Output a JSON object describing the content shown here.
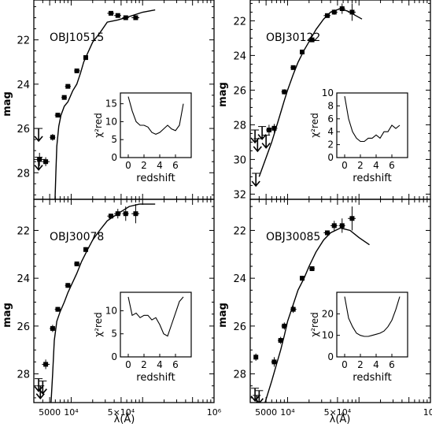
{
  "figure": {
    "xlabel": "λ(Å)",
    "ylabel": "mag",
    "xticklabels": [
      "5000",
      "10⁴",
      "5×10⁴",
      "10⁶"
    ],
    "inset": {
      "xlabel": "redshift",
      "ylabel": "χ²red"
    }
  },
  "chart_data": [
    {
      "type": "scatter",
      "panel": "top-left",
      "title": "OBJ10515",
      "xaxis": {
        "scale": "log",
        "label": "",
        "ticks": [
          5000,
          10000,
          50000,
          1000000
        ]
      },
      "yaxis": {
        "label": "mag",
        "inverted": true,
        "range": [
          29.2,
          20.2
        ],
        "ticks": [
          22,
          24,
          26,
          28
        ]
      },
      "photometry": [
        {
          "lambda": 3600,
          "mag": 27.4,
          "err": 0.3,
          "lambda_lo": 3000,
          "lambda_hi": 4300
        },
        {
          "lambda": 4400,
          "mag": 27.5,
          "err": 0.2,
          "lambda_lo": 3900,
          "lambda_hi": 5000
        },
        {
          "lambda": 5500,
          "mag": 26.4,
          "err": 0.15,
          "lambda_lo": 5000,
          "lambda_hi": 6000
        },
        {
          "lambda": 6500,
          "mag": 25.4,
          "err": 0.1,
          "lambda_lo": 5900,
          "lambda_hi": 7200
        },
        {
          "lambda": 8000,
          "mag": 24.6,
          "err": 0.1,
          "lambda_lo": 7300,
          "lambda_hi": 8700
        },
        {
          "lambda": 9000,
          "mag": 24.1,
          "err": 0.1,
          "lambda_lo": 8200,
          "lambda_hi": 9900
        },
        {
          "lambda": 12000,
          "mag": 23.4,
          "err": 0.1,
          "lambda_lo": 11000,
          "lambda_hi": 13300
        },
        {
          "lambda": 16000,
          "mag": 22.8,
          "err": 0.05,
          "lambda_lo": 15000,
          "lambda_hi": 17200
        },
        {
          "lambda": 36000,
          "mag": 20.8,
          "err": 0.05,
          "lambda_lo": 32000,
          "lambda_hi": 40000
        },
        {
          "lambda": 45000,
          "mag": 20.9,
          "err": 0.05,
          "lambda_lo": 40000,
          "lambda_hi": 50000
        },
        {
          "lambda": 58000,
          "mag": 21.0,
          "err": 0.05,
          "lambda_lo": 52000,
          "lambda_hi": 64000
        },
        {
          "lambda": 80000,
          "mag": 21.0,
          "err": 0.05,
          "lambda_lo": 70000,
          "lambda_hi": 90000
        }
      ],
      "upper_limits": [
        {
          "lambda": 3500,
          "mag": 26.0
        },
        {
          "lambda": 3500,
          "mag": 27.3
        }
      ],
      "model": [
        [
          5900,
          29.5
        ],
        [
          6100,
          28.0
        ],
        [
          6300,
          26.8
        ],
        [
          6700,
          25.9
        ],
        [
          7200,
          25.4
        ],
        [
          8000,
          25.0
        ],
        [
          9000,
          24.8
        ],
        [
          10500,
          24.3
        ],
        [
          12000,
          24.0
        ],
        [
          13500,
          23.5
        ],
        [
          15000,
          23.0
        ],
        [
          17000,
          22.6
        ],
        [
          20000,
          22.1
        ],
        [
          25000,
          21.7
        ],
        [
          32000,
          21.2
        ],
        [
          45000,
          21.1
        ],
        [
          65000,
          20.95
        ],
        [
          100000,
          20.75
        ],
        [
          150000,
          20.65
        ]
      ],
      "chi2": {
        "xlim": [
          -1,
          8
        ],
        "ylim": [
          0,
          18
        ],
        "yticks": [
          0,
          5,
          10,
          15
        ],
        "z": [
          0,
          0.5,
          1,
          1.5,
          2,
          2.5,
          3,
          3.5,
          4,
          4.5,
          5,
          5.5,
          6,
          6.5,
          7
        ],
        "values": [
          17,
          13,
          10,
          9,
          9,
          8.5,
          7,
          6.5,
          7,
          8,
          9,
          8,
          7.5,
          9,
          15
        ]
      }
    },
    {
      "type": "scatter",
      "panel": "top-right",
      "title": "OBJ30122",
      "xaxis": {
        "scale": "log",
        "label": "",
        "ticks": [
          5000,
          10000,
          50000,
          1000000
        ]
      },
      "yaxis": {
        "label": "",
        "inverted": true,
        "range": [
          32.3,
          20.8
        ],
        "ticks": [
          22,
          24,
          26,
          28,
          30,
          32
        ]
      },
      "photometry": [
        {
          "lambda": 5500,
          "mag": 28.3,
          "err": 0.3,
          "lambda_lo": 5000,
          "lambda_hi": 6000
        },
        {
          "lambda": 6500,
          "mag": 28.2,
          "err": 0.25,
          "lambda_lo": 5900,
          "lambda_hi": 7200
        },
        {
          "lambda": 9000,
          "mag": 26.1,
          "err": 0.15,
          "lambda_lo": 8200,
          "lambda_hi": 9900
        },
        {
          "lambda": 12000,
          "mag": 24.7,
          "err": 0.1,
          "lambda_lo": 11000,
          "lambda_hi": 13300
        },
        {
          "lambda": 16000,
          "mag": 23.8,
          "err": 0.1,
          "lambda_lo": 15000,
          "lambda_hi": 17200
        },
        {
          "lambda": 22000,
          "mag": 23.1,
          "err": 0.1,
          "lambda_lo": 20000,
          "lambda_hi": 24000
        },
        {
          "lambda": 36000,
          "mag": 21.7,
          "err": 0.1,
          "lambda_lo": 32000,
          "lambda_hi": 40000
        },
        {
          "lambda": 45000,
          "mag": 21.5,
          "err": 0.15,
          "lambda_lo": 40000,
          "lambda_hi": 50000
        },
        {
          "lambda": 58000,
          "mag": 21.3,
          "err": 0.3,
          "lambda_lo": 52000,
          "lambda_hi": 64000
        },
        {
          "lambda": 80000,
          "mag": 21.5,
          "err": 0.5,
          "lambda_lo": 70000,
          "lambda_hi": 90000
        }
      ],
      "upper_limits": [
        {
          "lambda": 3500,
          "mag": 28.3
        },
        {
          "lambda": 3800,
          "mag": 28.8
        },
        {
          "lambda": 4400,
          "mag": 28.1
        },
        {
          "lambda": 5000,
          "mag": 28.6
        },
        {
          "lambda": 3600,
          "mag": 30.8
        }
      ],
      "model": [
        [
          4000,
          31.0
        ],
        [
          5000,
          29.9
        ],
        [
          6000,
          29.0
        ],
        [
          7000,
          28.1
        ],
        [
          8000,
          27.3
        ],
        [
          9000,
          26.6
        ],
        [
          10000,
          26.0
        ],
        [
          12000,
          25.1
        ],
        [
          14000,
          24.4
        ],
        [
          17000,
          23.7
        ],
        [
          20000,
          23.2
        ],
        [
          25000,
          22.5
        ],
        [
          32000,
          21.9
        ],
        [
          40000,
          21.5
        ],
        [
          55000,
          21.3
        ],
        [
          70000,
          21.45
        ],
        [
          90000,
          21.7
        ],
        [
          110000,
          21.9
        ]
      ],
      "chi2": {
        "xlim": [
          -1,
          8
        ],
        "ylim": [
          0,
          10
        ],
        "yticks": [
          0,
          2,
          4,
          6,
          8,
          10
        ],
        "z": [
          0,
          0.5,
          1,
          1.5,
          2,
          2.5,
          3,
          3.5,
          4,
          4.5,
          5,
          5.5,
          6,
          6.5,
          7
        ],
        "values": [
          9.5,
          6,
          4,
          3,
          2.5,
          2.5,
          3,
          3,
          3.5,
          3,
          4,
          4,
          5,
          4.5,
          5
        ]
      }
    },
    {
      "type": "scatter",
      "panel": "bottom-left",
      "title": "OBJ30078",
      "xaxis": {
        "scale": "log",
        "label": "λ(Å)",
        "ticks": [
          5000,
          10000,
          50000,
          1000000
        ]
      },
      "yaxis": {
        "label": "mag",
        "inverted": true,
        "range": [
          29.2,
          20.7
        ],
        "ticks": [
          22,
          24,
          26,
          28
        ]
      },
      "photometry": [
        {
          "lambda": 4400,
          "mag": 27.6,
          "err": 0.2,
          "lambda_lo": 3900,
          "lambda_hi": 5000
        },
        {
          "lambda": 5500,
          "mag": 26.1,
          "err": 0.15,
          "lambda_lo": 5000,
          "lambda_hi": 6000
        },
        {
          "lambda": 6500,
          "mag": 25.3,
          "err": 0.1,
          "lambda_lo": 5900,
          "lambda_hi": 7200
        },
        {
          "lambda": 9000,
          "mag": 24.3,
          "err": 0.1,
          "lambda_lo": 8200,
          "lambda_hi": 9900
        },
        {
          "lambda": 12000,
          "mag": 23.4,
          "err": 0.1,
          "lambda_lo": 11000,
          "lambda_hi": 13300
        },
        {
          "lambda": 16000,
          "mag": 22.8,
          "err": 0.1,
          "lambda_lo": 15000,
          "lambda_hi": 17200
        },
        {
          "lambda": 36000,
          "mag": 21.4,
          "err": 0.1,
          "lambda_lo": 32000,
          "lambda_hi": 40000
        },
        {
          "lambda": 45000,
          "mag": 21.3,
          "err": 0.2,
          "lambda_lo": 40000,
          "lambda_hi": 50000
        },
        {
          "lambda": 58000,
          "mag": 21.3,
          "err": 0.3,
          "lambda_lo": 52000,
          "lambda_hi": 64000
        },
        {
          "lambda": 80000,
          "mag": 21.3,
          "err": 0.4,
          "lambda_lo": 70000,
          "lambda_hi": 90000
        }
      ],
      "upper_limits": [
        {
          "lambda": 3500,
          "mag": 28.2
        },
        {
          "lambda": 3700,
          "mag": 28.5
        },
        {
          "lambda": 4000,
          "mag": 28.3
        }
      ],
      "model": [
        [
          5200,
          29.3
        ],
        [
          5500,
          28.0
        ],
        [
          5800,
          26.6
        ],
        [
          6300,
          25.8
        ],
        [
          7000,
          25.4
        ],
        [
          8000,
          25.0
        ],
        [
          9000,
          24.6
        ],
        [
          10000,
          24.3
        ],
        [
          12000,
          23.8
        ],
        [
          14000,
          23.3
        ],
        [
          17000,
          22.8
        ],
        [
          20000,
          22.4
        ],
        [
          25000,
          22.0
        ],
        [
          32000,
          21.6
        ],
        [
          45000,
          21.3
        ],
        [
          65000,
          21.0
        ],
        [
          90000,
          20.9
        ],
        [
          150000,
          20.9
        ]
      ],
      "chi2": {
        "xlim": [
          -1,
          8
        ],
        "ylim": [
          0,
          14
        ],
        "yticks": [
          0,
          5,
          10
        ],
        "z": [
          0,
          0.5,
          1,
          1.5,
          2,
          2.5,
          3,
          3.5,
          4,
          4.5,
          5,
          5.5,
          6,
          6.5,
          7
        ],
        "values": [
          13,
          9,
          9.5,
          8.5,
          9,
          9,
          8,
          8.5,
          7,
          5,
          4.5,
          7,
          9.5,
          12,
          13
        ]
      }
    },
    {
      "type": "scatter",
      "panel": "bottom-right",
      "title": "OBJ30085",
      "xaxis": {
        "scale": "log",
        "label": "",
        "ticks": [
          5000,
          10000,
          50000,
          1000000
        ]
      },
      "yaxis": {
        "label": "",
        "inverted": true,
        "range": [
          29.2,
          20.7
        ],
        "ticks": [
          22,
          24,
          26,
          28
        ]
      },
      "photometry": [
        {
          "lambda": 3600,
          "mag": 27.3,
          "err": 0.15,
          "lambda_lo": 3500,
          "lambda_hi": 3700
        },
        {
          "lambda": 6500,
          "mag": 27.5,
          "err": 0.2,
          "lambda_lo": 5900,
          "lambda_hi": 7200
        },
        {
          "lambda": 8000,
          "mag": 26.6,
          "err": 0.15,
          "lambda_lo": 7300,
          "lambda_hi": 8700
        },
        {
          "lambda": 9000,
          "mag": 26.0,
          "err": 0.15,
          "lambda_lo": 8200,
          "lambda_hi": 9900
        },
        {
          "lambda": 12000,
          "mag": 25.3,
          "err": 0.15,
          "lambda_lo": 11000,
          "lambda_hi": 13300
        },
        {
          "lambda": 16000,
          "mag": 24.0,
          "err": 0.1,
          "lambda_lo": 15000,
          "lambda_hi": 17200
        },
        {
          "lambda": 22000,
          "mag": 23.6,
          "err": 0.1,
          "lambda_lo": 20000,
          "lambda_hi": 24000
        },
        {
          "lambda": 36000,
          "mag": 22.1,
          "err": 0.1,
          "lambda_lo": 32000,
          "lambda_hi": 40000
        },
        {
          "lambda": 45000,
          "mag": 21.8,
          "err": 0.2,
          "lambda_lo": 40000,
          "lambda_hi": 50000
        },
        {
          "lambda": 58000,
          "mag": 21.8,
          "err": 0.3,
          "lambda_lo": 52000,
          "lambda_hi": 64000
        },
        {
          "lambda": 80000,
          "mag": 21.5,
          "err": 0.5,
          "lambda_lo": 70000,
          "lambda_hi": 90000
        }
      ],
      "upper_limits": [
        {
          "lambda": 3500,
          "mag": 28.6
        },
        {
          "lambda": 3700,
          "mag": 28.9
        },
        {
          "lambda": 4000,
          "mag": 28.7
        }
      ],
      "model": [
        [
          4500,
          29.5
        ],
        [
          6000,
          28.3
        ],
        [
          7000,
          27.6
        ],
        [
          8000,
          27.0
        ],
        [
          9000,
          26.4
        ],
        [
          10000,
          25.8
        ],
        [
          12000,
          25.1
        ],
        [
          14000,
          24.5
        ],
        [
          17000,
          24.0
        ],
        [
          20000,
          23.5
        ],
        [
          25000,
          22.9
        ],
        [
          32000,
          22.4
        ],
        [
          40000,
          22.1
        ],
        [
          55000,
          21.9
        ],
        [
          75000,
          22.0
        ],
        [
          100000,
          22.3
        ],
        [
          140000,
          22.6
        ]
      ],
      "chi2": {
        "xlim": [
          -1,
          8
        ],
        "ylim": [
          0,
          30
        ],
        "yticks": [
          0,
          10,
          20
        ],
        "z": [
          0,
          0.5,
          1,
          1.5,
          2,
          2.5,
          3,
          3.5,
          4,
          4.5,
          5,
          5.5,
          6,
          6.5,
          7
        ],
        "values": [
          28,
          18,
          14,
          11,
          10,
          9.5,
          9.5,
          10,
          10.5,
          11,
          12,
          14,
          17,
          22,
          28
        ]
      }
    }
  ]
}
